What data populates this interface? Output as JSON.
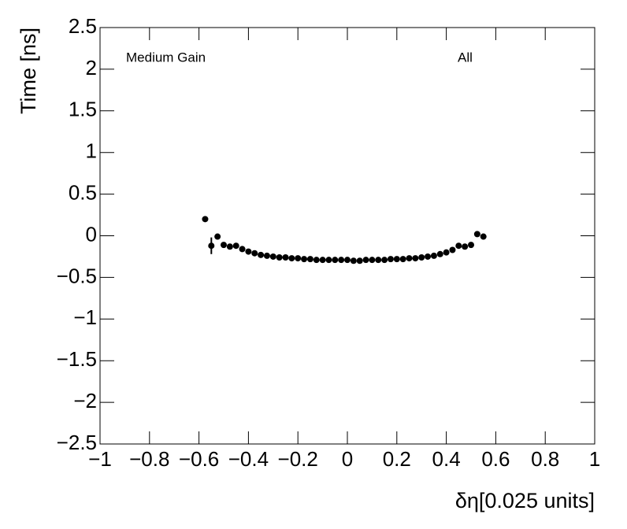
{
  "chart_data": {
    "type": "errorbar",
    "x_label": "δη[0.025 units]",
    "y_label": "Time [ns]",
    "annotations": [
      "Medium Gain",
      "All"
    ],
    "color": "#000000",
    "x": [
      -0.575,
      -0.55,
      -0.525,
      -0.5,
      -0.475,
      -0.45,
      -0.425,
      -0.4,
      -0.375,
      -0.35,
      -0.325,
      -0.3,
      -0.275,
      -0.25,
      -0.225,
      -0.2,
      -0.175,
      -0.15,
      -0.125,
      -0.1,
      -0.075,
      -0.05,
      -0.025,
      0,
      0.025,
      0.05,
      0.075,
      0.1,
      0.125,
      0.15,
      0.175,
      0.2,
      0.225,
      0.25,
      0.275,
      0.3,
      0.325,
      0.35,
      0.375,
      0.4,
      0.425,
      0.45,
      0.475,
      0.5,
      0.525,
      0.55
    ],
    "values": [
      0.2,
      -0.12,
      -0.01,
      -0.11,
      -0.13,
      -0.12,
      -0.16,
      -0.19,
      -0.21,
      -0.23,
      -0.24,
      -0.25,
      -0.26,
      -0.26,
      -0.27,
      -0.27,
      -0.28,
      -0.28,
      -0.29,
      -0.29,
      -0.29,
      -0.29,
      -0.29,
      -0.29,
      -0.3,
      -0.3,
      -0.29,
      -0.29,
      -0.29,
      -0.29,
      -0.28,
      -0.28,
      -0.28,
      -0.27,
      -0.27,
      -0.26,
      -0.25,
      -0.24,
      -0.22,
      -0.2,
      -0.17,
      -0.12,
      -0.13,
      -0.11,
      0.02,
      -0.01
    ],
    "errors": [
      0.02,
      0.1,
      0.02,
      0.02,
      0.02,
      0.01,
      0.01,
      0.01,
      0.01,
      0.01,
      0.01,
      0.01,
      0.01,
      0.01,
      0.01,
      0.01,
      0.01,
      0.01,
      0.01,
      0.01,
      0.01,
      0.01,
      0.01,
      0.01,
      0.01,
      0.01,
      0.01,
      0.01,
      0.01,
      0.01,
      0.01,
      0.01,
      0.01,
      0.01,
      0.01,
      0.01,
      0.01,
      0.01,
      0.01,
      0.01,
      0.01,
      0.01,
      0.02,
      0.02,
      0.02,
      0.02
    ],
    "xlim": [
      -1,
      1
    ],
    "xticks": [
      {
        "value": -1,
        "label": "−1"
      },
      {
        "value": -0.8,
        "label": "−0.8"
      },
      {
        "value": -0.6,
        "label": "−0.6"
      },
      {
        "value": -0.4,
        "label": "−0.4"
      },
      {
        "value": -0.2,
        "label": "−0.2"
      },
      0,
      0.2,
      0.4,
      0.6,
      0.8,
      1
    ],
    "ylim": [
      -2.5,
      2.5
    ],
    "yticks": [
      {
        "value": -2.5,
        "label": "−2.5"
      },
      {
        "value": -2,
        "label": "−2"
      },
      {
        "value": -1.5,
        "label": "−1.5"
      },
      {
        "value": -1,
        "label": "−1"
      },
      {
        "value": -0.5,
        "label": "−0.5"
      },
      0,
      0.5,
      1,
      1.5,
      2,
      2.5
    ],
    "grid": false
  }
}
